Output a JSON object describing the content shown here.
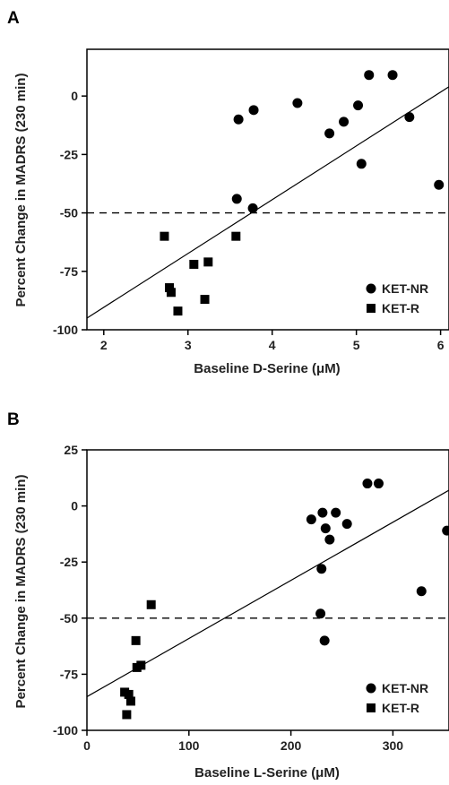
{
  "chart_data": [
    {
      "type": "scatter",
      "panel_label": "A",
      "title": "",
      "xlabel": "Baseline D-Serine (μM)",
      "ylabel": "Percent Change in MADRS (230 min)",
      "xlim": [
        1.8,
        6.1
      ],
      "ylim": [
        -100,
        20
      ],
      "xticks": [
        2,
        3,
        4,
        5,
        6
      ],
      "yticks": [
        0,
        -25,
        -50,
        -75,
        -100
      ],
      "grid": false,
      "legend_position": "bottom-right",
      "reference_line_y": -50,
      "series": [
        {
          "name": "KET-NR",
          "marker": "circle",
          "points": [
            [
              3.58,
              -44
            ],
            [
              3.6,
              -10
            ],
            [
              3.78,
              -6
            ],
            [
              3.77,
              -48
            ],
            [
              4.3,
              -3
            ],
            [
              4.68,
              -16
            ],
            [
              4.85,
              -11
            ],
            [
              5.02,
              -4
            ],
            [
              5.06,
              -29
            ],
            [
              5.15,
              9
            ],
            [
              5.43,
              9
            ],
            [
              5.63,
              -9
            ],
            [
              5.98,
              -38
            ]
          ]
        },
        {
          "name": "KET-R",
          "marker": "square",
          "points": [
            [
              2.72,
              -60
            ],
            [
              2.78,
              -82
            ],
            [
              2.8,
              -84
            ],
            [
              2.88,
              -92
            ],
            [
              3.07,
              -72
            ],
            [
              3.2,
              -87
            ],
            [
              3.24,
              -71
            ],
            [
              3.57,
              -60
            ]
          ]
        }
      ],
      "fit_line": {
        "x": [
          1.8,
          6.1
        ],
        "y": [
          -95,
          4
        ]
      }
    },
    {
      "type": "scatter",
      "panel_label": "B",
      "title": "",
      "xlabel": "Baseline L-Serine (μM)",
      "ylabel": "Percent Change in MADRS (230 min)",
      "xlim": [
        0,
        355
      ],
      "ylim": [
        -100,
        25
      ],
      "xticks": [
        0,
        100,
        200,
        300
      ],
      "yticks": [
        25,
        0,
        -25,
        -50,
        -75,
        -100
      ],
      "grid": false,
      "legend_position": "bottom-right",
      "reference_line_y": -50,
      "series": [
        {
          "name": "KET-NR",
          "marker": "circle",
          "points": [
            [
              220,
              -6
            ],
            [
              229,
              -48
            ],
            [
              230,
              -28
            ],
            [
              231,
              -3
            ],
            [
              233,
              -60
            ],
            [
              234,
              -10
            ],
            [
              238,
              -15
            ],
            [
              244,
              -3
            ],
            [
              255,
              -8
            ],
            [
              275,
              10
            ],
            [
              286,
              10
            ],
            [
              328,
              -38
            ],
            [
              353,
              -11
            ]
          ]
        },
        {
          "name": "KET-R",
          "marker": "square",
          "points": [
            [
              37,
              -83
            ],
            [
              39,
              -93
            ],
            [
              41,
              -84
            ],
            [
              43,
              -87
            ],
            [
              48,
              -60
            ],
            [
              49,
              -72
            ],
            [
              53,
              -71
            ],
            [
              63,
              -44
            ]
          ]
        }
      ],
      "fit_line": {
        "x": [
          0,
          355
        ],
        "y": [
          -85,
          7
        ]
      }
    }
  ]
}
